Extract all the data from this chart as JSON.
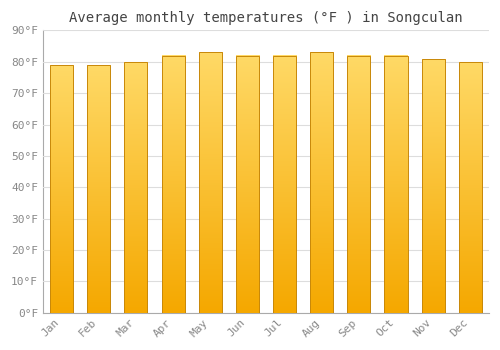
{
  "title": "Average monthly temperatures (°F ) in Songculan",
  "months": [
    "Jan",
    "Feb",
    "Mar",
    "Apr",
    "May",
    "Jun",
    "Jul",
    "Aug",
    "Sep",
    "Oct",
    "Nov",
    "Dec"
  ],
  "values": [
    79,
    79,
    80,
    82,
    83,
    82,
    82,
    83,
    82,
    82,
    81,
    80
  ],
  "bar_color_bottom": "#F5A800",
  "bar_color_top": "#FFD966",
  "bar_edge_color": "#C8880A",
  "background_color": "#FFFFFF",
  "plot_bg_color": "#FFFFFF",
  "grid_color": "#DDDDDD",
  "ylabel_ticks": [
    "0°F",
    "10°F",
    "20°F",
    "30°F",
    "40°F",
    "50°F",
    "60°F",
    "70°F",
    "80°F",
    "90°F"
  ],
  "ytick_values": [
    0,
    10,
    20,
    30,
    40,
    50,
    60,
    70,
    80,
    90
  ],
  "ylim": [
    0,
    90
  ],
  "title_fontsize": 10,
  "tick_fontsize": 8,
  "tick_color": "#888888",
  "title_color": "#444444",
  "font_family": "monospace",
  "bar_width": 0.62,
  "gradient_steps": 100
}
